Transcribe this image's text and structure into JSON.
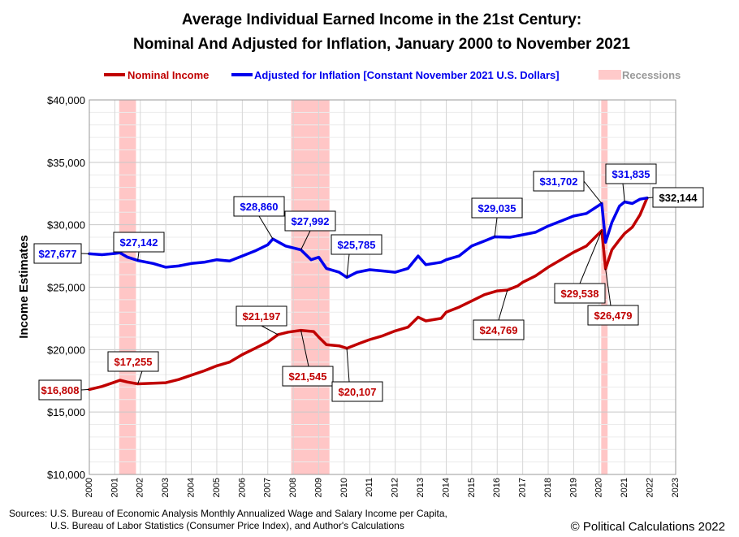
{
  "chart_data": {
    "type": "line",
    "title": [
      "Average Individual Earned Income in the 21st Century:",
      "Nominal And Adjusted for Inflation, January 2000 to November 2021"
    ],
    "ylabel": "Income Estimates",
    "xlabel": "",
    "ylim": [
      10000,
      40000
    ],
    "xlim": [
      2000,
      2023
    ],
    "yticks": [
      10000,
      15000,
      20000,
      25000,
      30000,
      35000,
      40000
    ],
    "ytick_labels": [
      "$10,000",
      "$15,000",
      "$20,000",
      "$25,000",
      "$30,000",
      "$35,000",
      "$40,000"
    ],
    "xticks": [
      2000,
      2001,
      2002,
      2003,
      2004,
      2005,
      2006,
      2007,
      2008,
      2009,
      2010,
      2011,
      2012,
      2013,
      2014,
      2015,
      2016,
      2017,
      2018,
      2019,
      2020,
      2021,
      2022,
      2023
    ],
    "grid": true,
    "legend_position": "top",
    "recessions": [
      [
        2001.17,
        2001.83
      ],
      [
        2007.92,
        2009.42
      ],
      [
        2020.08,
        2020.33
      ]
    ],
    "series": [
      {
        "name": "Nominal Income",
        "color": "#c00000",
        "points": [
          [
            2000.0,
            16808
          ],
          [
            2000.5,
            17050
          ],
          [
            2001.0,
            17400
          ],
          [
            2001.2,
            17550
          ],
          [
            2001.5,
            17400
          ],
          [
            2001.9,
            17255
          ],
          [
            2002.5,
            17300
          ],
          [
            2003.0,
            17350
          ],
          [
            2003.5,
            17600
          ],
          [
            2004.0,
            17950
          ],
          [
            2004.5,
            18300
          ],
          [
            2005.0,
            18700
          ],
          [
            2005.5,
            19000
          ],
          [
            2006.0,
            19600
          ],
          [
            2006.5,
            20100
          ],
          [
            2007.0,
            20600
          ],
          [
            2007.4,
            21197
          ],
          [
            2007.8,
            21400
          ],
          [
            2008.3,
            21545
          ],
          [
            2008.8,
            21450
          ],
          [
            2009.0,
            21000
          ],
          [
            2009.3,
            20400
          ],
          [
            2009.8,
            20300
          ],
          [
            2010.1,
            20107
          ],
          [
            2010.6,
            20500
          ],
          [
            2011.0,
            20800
          ],
          [
            2011.5,
            21100
          ],
          [
            2012.0,
            21500
          ],
          [
            2012.5,
            21800
          ],
          [
            2012.9,
            22600
          ],
          [
            2013.2,
            22300
          ],
          [
            2013.8,
            22500
          ],
          [
            2014.0,
            23000
          ],
          [
            2014.5,
            23400
          ],
          [
            2015.0,
            23900
          ],
          [
            2015.5,
            24400
          ],
          [
            2016.0,
            24700
          ],
          [
            2016.4,
            24769
          ],
          [
            2016.8,
            25100
          ],
          [
            2017.0,
            25400
          ],
          [
            2017.5,
            25900
          ],
          [
            2018.0,
            26600
          ],
          [
            2018.5,
            27200
          ],
          [
            2019.0,
            27800
          ],
          [
            2019.5,
            28300
          ],
          [
            2020.1,
            29538
          ],
          [
            2020.25,
            26479
          ],
          [
            2020.5,
            28000
          ],
          [
            2020.8,
            28800
          ],
          [
            2021.0,
            29300
          ],
          [
            2021.3,
            29800
          ],
          [
            2021.6,
            30800
          ],
          [
            2021.88,
            32144
          ]
        ]
      },
      {
        "name": "Adjusted for Inflation [Constant November 2021 U.S. Dollars]",
        "color": "#0000ee",
        "points": [
          [
            2000.0,
            27677
          ],
          [
            2000.5,
            27600
          ],
          [
            2001.0,
            27700
          ],
          [
            2001.2,
            27750
          ],
          [
            2001.5,
            27400
          ],
          [
            2001.9,
            27142
          ],
          [
            2002.5,
            26900
          ],
          [
            2003.0,
            26600
          ],
          [
            2003.5,
            26700
          ],
          [
            2004.0,
            26900
          ],
          [
            2004.5,
            27000
          ],
          [
            2005.0,
            27200
          ],
          [
            2005.5,
            27100
          ],
          [
            2006.0,
            27500
          ],
          [
            2006.5,
            27900
          ],
          [
            2007.0,
            28400
          ],
          [
            2007.2,
            28860
          ],
          [
            2007.7,
            28300
          ],
          [
            2008.3,
            27992
          ],
          [
            2008.7,
            27200
          ],
          [
            2009.0,
            27400
          ],
          [
            2009.3,
            26500
          ],
          [
            2009.8,
            26200
          ],
          [
            2010.1,
            25785
          ],
          [
            2010.5,
            26200
          ],
          [
            2011.0,
            26400
          ],
          [
            2011.5,
            26300
          ],
          [
            2012.0,
            26200
          ],
          [
            2012.5,
            26500
          ],
          [
            2012.9,
            27500
          ],
          [
            2013.2,
            26800
          ],
          [
            2013.8,
            27000
          ],
          [
            2014.0,
            27200
          ],
          [
            2014.5,
            27500
          ],
          [
            2015.0,
            28300
          ],
          [
            2015.5,
            28700
          ],
          [
            2015.9,
            29035
          ],
          [
            2016.5,
            29000
          ],
          [
            2017.0,
            29200
          ],
          [
            2017.5,
            29400
          ],
          [
            2018.0,
            29900
          ],
          [
            2018.5,
            30300
          ],
          [
            2019.0,
            30700
          ],
          [
            2019.5,
            30900
          ],
          [
            2020.1,
            31702
          ],
          [
            2020.25,
            28600
          ],
          [
            2020.5,
            30200
          ],
          [
            2020.8,
            31500
          ],
          [
            2021.0,
            31835
          ],
          [
            2021.3,
            31700
          ],
          [
            2021.6,
            32050
          ],
          [
            2021.88,
            32144
          ]
        ]
      }
    ],
    "annotations": [
      {
        "text": "$16,808",
        "series": 0,
        "color": "#c00000"
      },
      {
        "text": "$17,255",
        "series": 0,
        "color": "#c00000"
      },
      {
        "text": "$21,197",
        "series": 0,
        "color": "#c00000"
      },
      {
        "text": "$21,545",
        "series": 0,
        "color": "#c00000"
      },
      {
        "text": "$20,107",
        "series": 0,
        "color": "#c00000"
      },
      {
        "text": "$24,769",
        "series": 0,
        "color": "#c00000"
      },
      {
        "text": "$29,538",
        "series": 0,
        "color": "#c00000"
      },
      {
        "text": "$26,479",
        "series": 0,
        "color": "#c00000"
      },
      {
        "text": "$27,677",
        "series": 1,
        "color": "#0000ee"
      },
      {
        "text": "$27,142",
        "series": 1,
        "color": "#0000ee"
      },
      {
        "text": "$28,860",
        "series": 1,
        "color": "#0000ee"
      },
      {
        "text": "$27,992",
        "series": 1,
        "color": "#0000ee"
      },
      {
        "text": "$25,785",
        "series": 1,
        "color": "#0000ee"
      },
      {
        "text": "$29,035",
        "series": 1,
        "color": "#0000ee"
      },
      {
        "text": "$31,702",
        "series": 1,
        "color": "#0000ee"
      },
      {
        "text": "$31,835",
        "series": 1,
        "color": "#0000ee"
      },
      {
        "text": "$32,144",
        "series": 1,
        "color": "#000000"
      }
    ]
  },
  "legend": {
    "nominal": "Nominal Income",
    "adjusted": "Adjusted for Inflation [Constant November 2021 U.S. Dollars]",
    "recessions": "Recessions",
    "recession_color": "#ffb3b3"
  },
  "footer": {
    "sources_line1": "Sources: U.S. Bureau of Economic Analysis Monthly Annualized Wage and Salary Income per Capita,",
    "sources_line2": "U.S. Bureau of Labor Statistics (Consumer Price Index), and Author's Calculations",
    "copyright": "© Political Calculations 2022"
  }
}
